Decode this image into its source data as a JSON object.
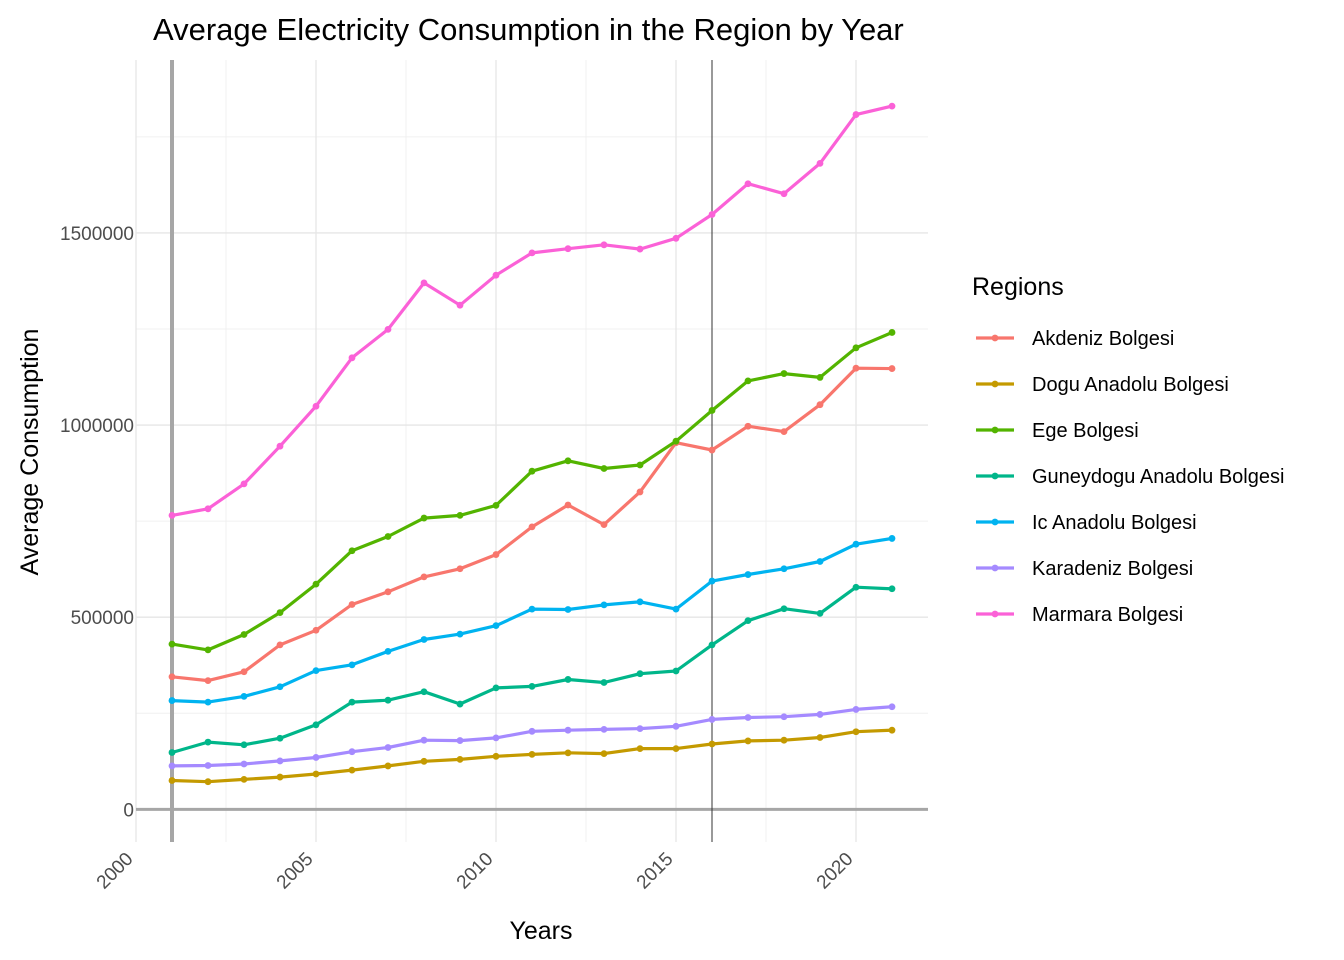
{
  "chart_data": {
    "type": "line",
    "title": "Average Electricity Consumption in the Region by Year",
    "xlabel": "Years",
    "ylabel": "Average Consumption",
    "xlim": [
      2000,
      2022
    ],
    "ylim": [
      -85000,
      1950000
    ],
    "x_ticks": [
      2000,
      2005,
      2010,
      2015,
      2020
    ],
    "x_tick_labels": [
      "2000",
      "2005",
      "2010",
      "2015",
      "2020"
    ],
    "y_ticks": [
      0,
      500000,
      1000000,
      1500000
    ],
    "y_tick_labels": [
      "0",
      "500000",
      "1000000",
      "1500000"
    ],
    "reference_lines": {
      "vertical": [
        2001,
        2016
      ],
      "horizontal": [
        0
      ]
    },
    "grid": true,
    "legend": {
      "title": "Regions",
      "position": "right"
    },
    "x": [
      2001,
      2002,
      2003,
      2004,
      2005,
      2006,
      2007,
      2008,
      2009,
      2010,
      2011,
      2012,
      2013,
      2014,
      2015,
      2016,
      2017,
      2018,
      2019,
      2020,
      2021
    ],
    "series": [
      {
        "name": "Akdeniz Bolgesi",
        "color": "#F8766D",
        "values": [
          345000,
          335000,
          358000,
          428000,
          466000,
          533000,
          566000,
          605000,
          626000,
          663000,
          735000,
          792000,
          741000,
          826000,
          954000,
          935000,
          997000,
          983000,
          1053000,
          1148000,
          1147000
        ]
      },
      {
        "name": "Dogu Anadolu Bolgesi",
        "color": "#C49A00",
        "values": [
          75000,
          72000,
          78000,
          84000,
          92000,
          102000,
          113000,
          125000,
          130000,
          138000,
          143000,
          147000,
          145000,
          158000,
          158000,
          170000,
          178000,
          180000,
          187000,
          202000,
          206000
        ]
      },
      {
        "name": "Ege Bolgesi",
        "color": "#53B400",
        "values": [
          430000,
          415000,
          455000,
          512000,
          586000,
          673000,
          710000,
          758000,
          765000,
          791000,
          880000,
          907000,
          887000,
          896000,
          958000,
          1038000,
          1115000,
          1134000,
          1124000,
          1201000,
          1241000
        ]
      },
      {
        "name": "Guneydogu Anadolu Bolgesi",
        "color": "#00B68A",
        "values": [
          148000,
          175000,
          168000,
          185000,
          220000,
          279000,
          284000,
          306000,
          274000,
          316000,
          320000,
          338000,
          330000,
          353000,
          360000,
          428000,
          491000,
          522000,
          510000,
          578000,
          574000
        ]
      },
      {
        "name": "Ic Anadolu Bolgesi",
        "color": "#00B3F0",
        "values": [
          283000,
          279000,
          294000,
          319000,
          361000,
          376000,
          411000,
          442000,
          456000,
          478000,
          521000,
          520000,
          532000,
          540000,
          521000,
          594000,
          611000,
          626000,
          645000,
          690000,
          705000
        ]
      },
      {
        "name": "Karadeniz Bolgesi",
        "color": "#A58AFF",
        "values": [
          113000,
          114000,
          118000,
          126000,
          135000,
          150000,
          161000,
          180000,
          179000,
          186000,
          203000,
          206000,
          208000,
          210000,
          216000,
          234000,
          239000,
          241000,
          247000,
          260000,
          267000
        ]
      },
      {
        "name": "Marmara Bolgesi",
        "color": "#FB61D7",
        "values": [
          765000,
          782000,
          847000,
          945000,
          1049000,
          1175000,
          1249000,
          1370000,
          1312000,
          1390000,
          1448000,
          1459000,
          1469000,
          1458000,
          1486000,
          1548000,
          1628000,
          1602000,
          1681000,
          1808000,
          1830000
        ]
      }
    ]
  }
}
